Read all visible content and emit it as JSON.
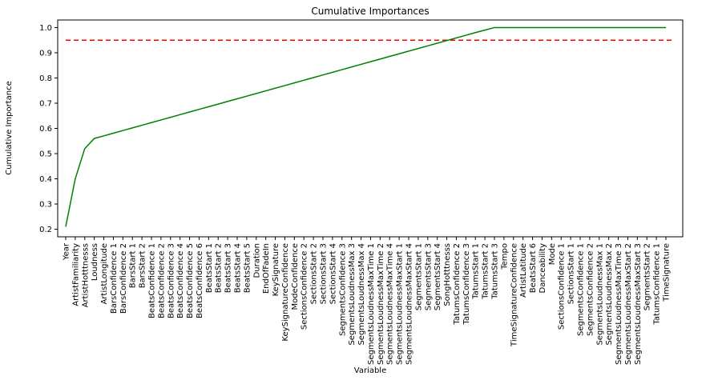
{
  "chart_data": {
    "type": "line",
    "title": "Cumulative Importances",
    "xlabel": "Variable",
    "ylabel": "Cumulative Importance",
    "ylim": [
      0.17,
      1.03
    ],
    "yticks": [
      "0.2",
      "0.3",
      "0.4",
      "0.5",
      "0.6",
      "0.7",
      "0.8",
      "0.9",
      "1.0"
    ],
    "grid": false,
    "categories": [
      "Year",
      "ArtistFamiliarity",
      "ArtistHotttnesss",
      "Loudness",
      "ArtistLongitude",
      "BarsConfidence 1",
      "BarsConfidence 2",
      "BarsStart 1",
      "BarsStart 2",
      "BeatsConfidence 1",
      "BeatsConfidence 2",
      "BeatsConfidence 3",
      "BeatsConfidence 4",
      "BeatsConfidence 5",
      "BeatsConfidence 6",
      "BeatsStart 1",
      "BeatsStart 2",
      "BeatsStart 3",
      "BeatsStart 4",
      "BeatsStart 5",
      "Duration",
      "EndOfFadeIn",
      "KeySignature",
      "KeySignatureConfidence",
      "ModeConfidence",
      "SectionsConfidence 2",
      "SectionsStart 2",
      "SectionsStart 3",
      "SectionsStart 4",
      "SegmentsConfidence 3",
      "SegmentsLoudnessMax 3",
      "SegmentsLoudnessMax 4",
      "SegmentsLoudnessMaxTime 1",
      "SegmentsLoudnessMaxTime 2",
      "SegmentsLoudnessMaxTime 4",
      "SegmentsLoudnessMaxStart 1",
      "SegmentsLoudnessMaxStart 4",
      "SegmentsStart 1",
      "SegmentsStart 3",
      "SegmentsStart 4",
      "SongHotttnesss",
      "TatumsConfidence 2",
      "TatumsConfidence 3",
      "TatumsStart 1",
      "TatumsStart 2",
      "TatumsStart 3",
      "Tempo",
      "TimeSignatureConfidence",
      "ArtistLatitude",
      "BeatsStart 6",
      "Danceability",
      "Mode",
      "SectionsConfidence 1",
      "SectionsStart 1",
      "SegmentsConfidence 1",
      "SegmentsConfidence 2",
      "SegmentsLoudnessMax 1",
      "SegmentsLoudnessMax 2",
      "SegmentsLoudnessMaxTime 3",
      "SegmentsLoudnessMaxStart 2",
      "SegmentsLoudnessMaxStart 3",
      "SegmentsStart 2",
      "TatumsConfidence 1",
      "TimeSignature"
    ],
    "series": [
      {
        "color": "#008000",
        "values": [
          0.21,
          0.4,
          0.52,
          0.56,
          0.5705,
          0.581,
          0.5915,
          0.602,
          0.6125,
          0.623,
          0.6335,
          0.644,
          0.6545,
          0.665,
          0.6755,
          0.686,
          0.6965,
          0.707,
          0.7175,
          0.728,
          0.7385,
          0.749,
          0.7595,
          0.77,
          0.7805,
          0.791,
          0.8015,
          0.812,
          0.8225,
          0.833,
          0.8435,
          0.854,
          0.8645,
          0.875,
          0.8855,
          0.896,
          0.9065,
          0.917,
          0.9275,
          0.938,
          0.9485,
          0.959,
          0.9695,
          0.98,
          0.99,
          1.0,
          1.0,
          1.0,
          1.0,
          1.0,
          1.0,
          1.0,
          1.0,
          1.0,
          1.0,
          1.0,
          1.0,
          1.0,
          1.0,
          1.0,
          1.0,
          1.0,
          1.0,
          1.0
        ]
      }
    ],
    "threshold": {
      "value": 0.95,
      "color": "#ff0000",
      "style": "dashed"
    }
  }
}
